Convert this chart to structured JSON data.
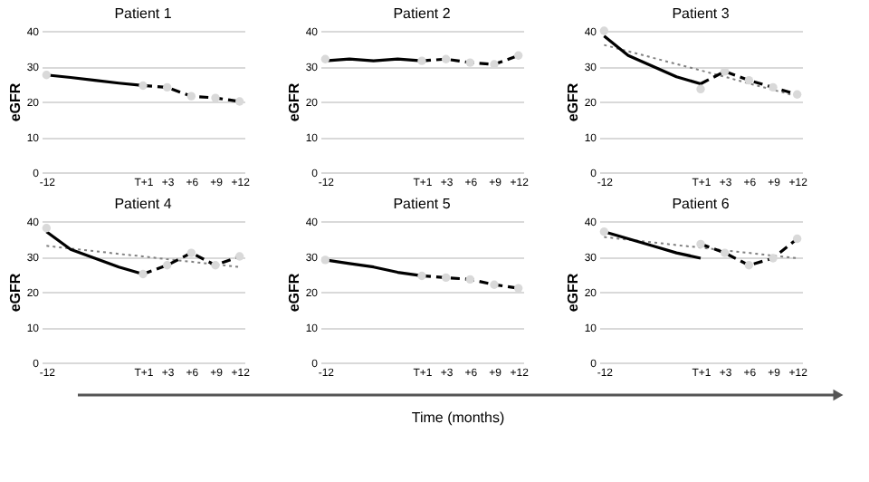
{
  "chart_data": [
    {
      "type": "line",
      "title": "Patient 1",
      "ylabel": "eGFR",
      "categories": [
        "-12",
        null,
        null,
        null,
        "T+1",
        "+3",
        "+6",
        "+9",
        "+12"
      ],
      "ylim": [
        0,
        40
      ],
      "yticks": [
        0,
        10,
        20,
        30,
        40
      ],
      "grid": "y",
      "series": [
        {
          "line_style": "solid",
          "color": "#000000",
          "values": [
            27.5,
            26.8,
            26,
            25.2,
            24.5,
            null,
            null,
            null,
            null
          ]
        },
        {
          "line_style": "dashed",
          "color": "#000000",
          "values": [
            null,
            null,
            null,
            null,
            24.5,
            24,
            21.5,
            21,
            20
          ]
        },
        {
          "type": "scatter",
          "marker": "circle",
          "color": "#d9d9d9",
          "values": [
            27.5,
            null,
            null,
            null,
            24.5,
            24,
            21.5,
            21,
            20
          ]
        }
      ]
    },
    {
      "type": "line",
      "title": "Patient 2",
      "ylabel": "eGFR",
      "categories": [
        "-12",
        null,
        null,
        null,
        "T+1",
        "+3",
        "+6",
        "+9",
        "+12"
      ],
      "ylim": [
        0,
        40
      ],
      "yticks": [
        0,
        10,
        20,
        30,
        40
      ],
      "grid": "y",
      "series": [
        {
          "line_style": "solid",
          "color": "#000000",
          "values": [
            31.5,
            32,
            31.5,
            32,
            31.5,
            null,
            null,
            null,
            null
          ]
        },
        {
          "line_style": "dashed",
          "color": "#000000",
          "values": [
            null,
            null,
            null,
            null,
            31.5,
            32,
            31,
            30.5,
            33
          ]
        },
        {
          "type": "scatter",
          "marker": "circle",
          "color": "#d9d9d9",
          "values": [
            32,
            null,
            null,
            null,
            31.5,
            32,
            31,
            30.5,
            33
          ]
        }
      ]
    },
    {
      "type": "line",
      "title": "Patient 3",
      "ylabel": "eGFR",
      "categories": [
        "-12",
        null,
        null,
        null,
        "T+1",
        "+3",
        "+6",
        "+9",
        "+12"
      ],
      "ylim": [
        0,
        40
      ],
      "yticks": [
        0,
        10,
        20,
        30,
        40
      ],
      "grid": "y",
      "series": [
        {
          "line_style": "dotted",
          "color": "#808080",
          "values": [
            36,
            34.2,
            32.4,
            30.6,
            28.8,
            27,
            25.1,
            23.3,
            21.5
          ]
        },
        {
          "line_style": "solid",
          "color": "#000000",
          "values": [
            38.5,
            33,
            30,
            27,
            25,
            null,
            null,
            null,
            null
          ]
        },
        {
          "line_style": "dashed",
          "color": "#000000",
          "values": [
            null,
            null,
            null,
            null,
            25,
            28.5,
            26,
            24,
            22
          ]
        },
        {
          "type": "scatter",
          "marker": "circle",
          "color": "#d9d9d9",
          "values": [
            40,
            null,
            null,
            null,
            23.5,
            28.5,
            26,
            24,
            22
          ]
        }
      ]
    },
    {
      "type": "line",
      "title": "Patient 4",
      "ylabel": "eGFR",
      "categories": [
        "-12",
        null,
        null,
        null,
        "T+1",
        "+3",
        "+6",
        "+9",
        "+12"
      ],
      "ylim": [
        0,
        40
      ],
      "yticks": [
        0,
        10,
        20,
        30,
        40
      ],
      "grid": "y",
      "series": [
        {
          "line_style": "dotted",
          "color": "#808080",
          "values": [
            33,
            32.2,
            31.5,
            30.7,
            30,
            29.2,
            28.5,
            27.7,
            27
          ]
        },
        {
          "line_style": "solid",
          "color": "#000000",
          "values": [
            37,
            32,
            29.5,
            27,
            25,
            null,
            null,
            null,
            null
          ]
        },
        {
          "line_style": "dashed",
          "color": "#000000",
          "values": [
            null,
            null,
            null,
            null,
            25,
            27.5,
            31,
            27.5,
            30
          ]
        },
        {
          "type": "scatter",
          "marker": "circle",
          "color": "#d9d9d9",
          "values": [
            38,
            null,
            null,
            null,
            25,
            27.5,
            31,
            27.5,
            30
          ]
        }
      ]
    },
    {
      "type": "line",
      "title": "Patient 5",
      "ylabel": "eGFR",
      "xlabel": "Time (months)",
      "categories": [
        "-12",
        null,
        null,
        null,
        "T+1",
        "+3",
        "+6",
        "+9",
        "+12"
      ],
      "ylim": [
        0,
        40
      ],
      "yticks": [
        0,
        10,
        20,
        30,
        40
      ],
      "grid": "y",
      "series": [
        {
          "line_style": "solid",
          "color": "#000000",
          "values": [
            29,
            28,
            27,
            25.5,
            24.5,
            null,
            null,
            null,
            null
          ]
        },
        {
          "line_style": "dashed",
          "color": "#000000",
          "values": [
            null,
            null,
            null,
            null,
            24.5,
            24,
            23.5,
            22,
            21
          ]
        },
        {
          "type": "scatter",
          "marker": "circle",
          "color": "#d9d9d9",
          "values": [
            29,
            null,
            null,
            null,
            24.5,
            24,
            23.5,
            22,
            21
          ]
        }
      ]
    },
    {
      "type": "line",
      "title": "Patient 6",
      "ylabel": "eGFR",
      "categories": [
        "-12",
        null,
        null,
        null,
        "T+1",
        "+3",
        "+6",
        "+9",
        "+12"
      ],
      "ylim": [
        0,
        40
      ],
      "yticks": [
        0,
        10,
        20,
        30,
        40
      ],
      "grid": "y",
      "series": [
        {
          "line_style": "dotted",
          "color": "#808080",
          "values": [
            35.5,
            34.7,
            34,
            33.2,
            32.5,
            31.7,
            31,
            30.2,
            29.5
          ]
        },
        {
          "line_style": "solid",
          "color": "#000000",
          "values": [
            37,
            35,
            33,
            31,
            29.5,
            null,
            null,
            null,
            null
          ]
        },
        {
          "line_style": "dashed",
          "color": "#000000",
          "values": [
            null,
            null,
            null,
            null,
            33.5,
            31,
            27.5,
            29.5,
            35
          ]
        },
        {
          "type": "scatter",
          "marker": "circle",
          "color": "#d9d9d9",
          "values": [
            37,
            null,
            null,
            null,
            33.5,
            31,
            27.5,
            29.5,
            35
          ]
        }
      ]
    }
  ]
}
